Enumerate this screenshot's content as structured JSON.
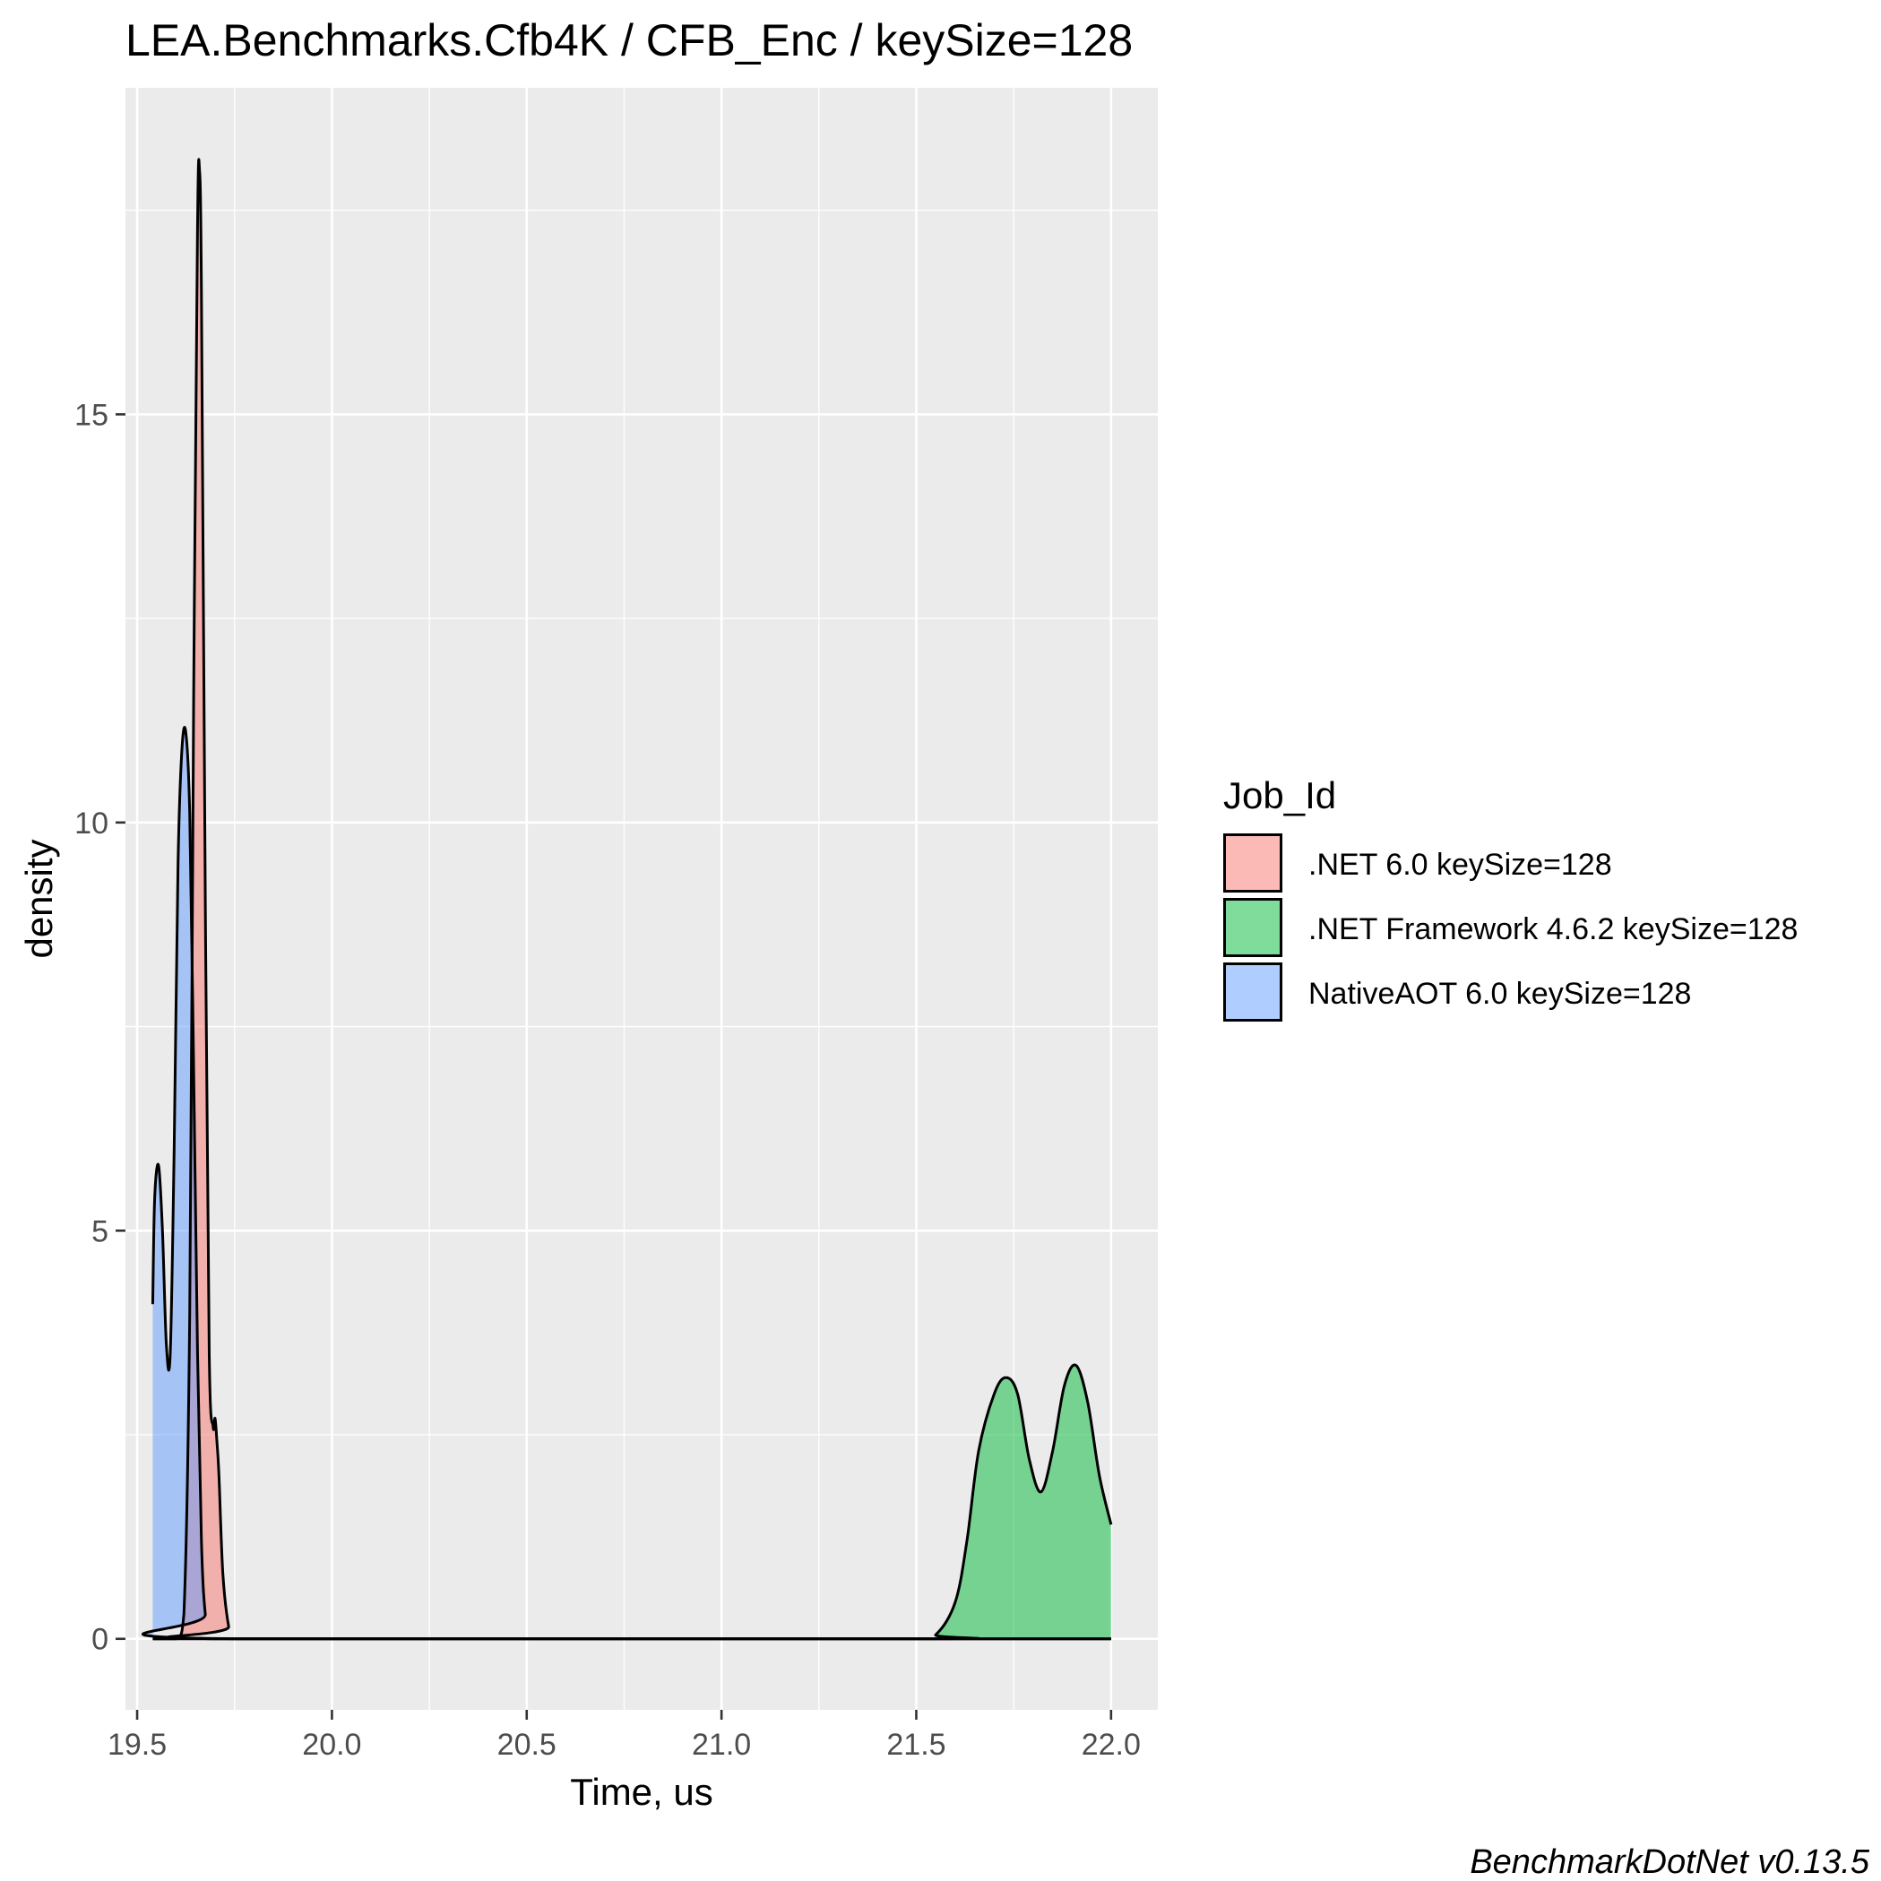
{
  "chart_data": {
    "type": "area",
    "title": "LEA.Benchmarks.Cfb4K / CFB_Enc / keySize=128",
    "xlabel": "Time, us",
    "ylabel": "density",
    "xlim": [
      19.47,
      22.12
    ],
    "ylim": [
      -0.87,
      19.0
    ],
    "x_ticks": [
      19.5,
      20.0,
      20.5,
      21.0,
      21.5,
      22.0
    ],
    "x_tick_labels": [
      "19.5",
      "20.0",
      "20.5",
      "21.0",
      "21.5",
      "22.0"
    ],
    "y_ticks": [
      0,
      5,
      10,
      15
    ],
    "y_tick_labels": [
      "0",
      "5",
      "10",
      "15"
    ],
    "grid": true,
    "legend": {
      "title": "Job_Id",
      "position": "right"
    },
    "caption": "BenchmarkDotNet v0.13.5",
    "series": [
      {
        "name": ".NET 6.0 keySize=128",
        "color": "#F8766D",
        "x": [
          19.54,
          19.6,
          19.62,
          19.635,
          19.645,
          19.655,
          19.66,
          19.665,
          19.675,
          19.685,
          19.695,
          19.7,
          19.705,
          19.71,
          19.72,
          19.735,
          19.75,
          22.0
        ],
        "y": [
          0,
          0,
          0.3,
          4.0,
          11.5,
          17.3,
          18.0,
          16.5,
          9.0,
          3.5,
          2.6,
          2.7,
          2.4,
          2.0,
          0.8,
          0.15,
          0,
          0
        ]
      },
      {
        "name": ".NET Framework 4.6.2 keySize=128",
        "color": "#00BA38",
        "x": [
          19.54,
          21.5,
          21.55,
          21.6,
          21.63,
          21.66,
          21.7,
          21.73,
          21.76,
          21.79,
          21.82,
          21.85,
          21.88,
          21.91,
          21.94,
          21.97,
          22.0
        ],
        "y": [
          0,
          0,
          0.05,
          0.45,
          1.2,
          2.3,
          3.0,
          3.2,
          3.0,
          2.2,
          1.8,
          2.3,
          3.1,
          3.35,
          2.9,
          2.0,
          1.4
        ]
      },
      {
        "name": "NativeAOT 6.0 keySize=128",
        "color": "#619CFF",
        "x": [
          19.54,
          19.545,
          19.555,
          19.565,
          19.575,
          19.585,
          19.595,
          19.605,
          19.615,
          19.625,
          19.635,
          19.645,
          19.655,
          19.665,
          19.675,
          19.69,
          22.0
        ],
        "y": [
          4.1,
          5.4,
          5.8,
          5.0,
          3.6,
          3.5,
          6.0,
          9.5,
          10.9,
          11.1,
          10.1,
          7.0,
          3.5,
          1.2,
          0.3,
          0,
          0
        ]
      }
    ]
  }
}
